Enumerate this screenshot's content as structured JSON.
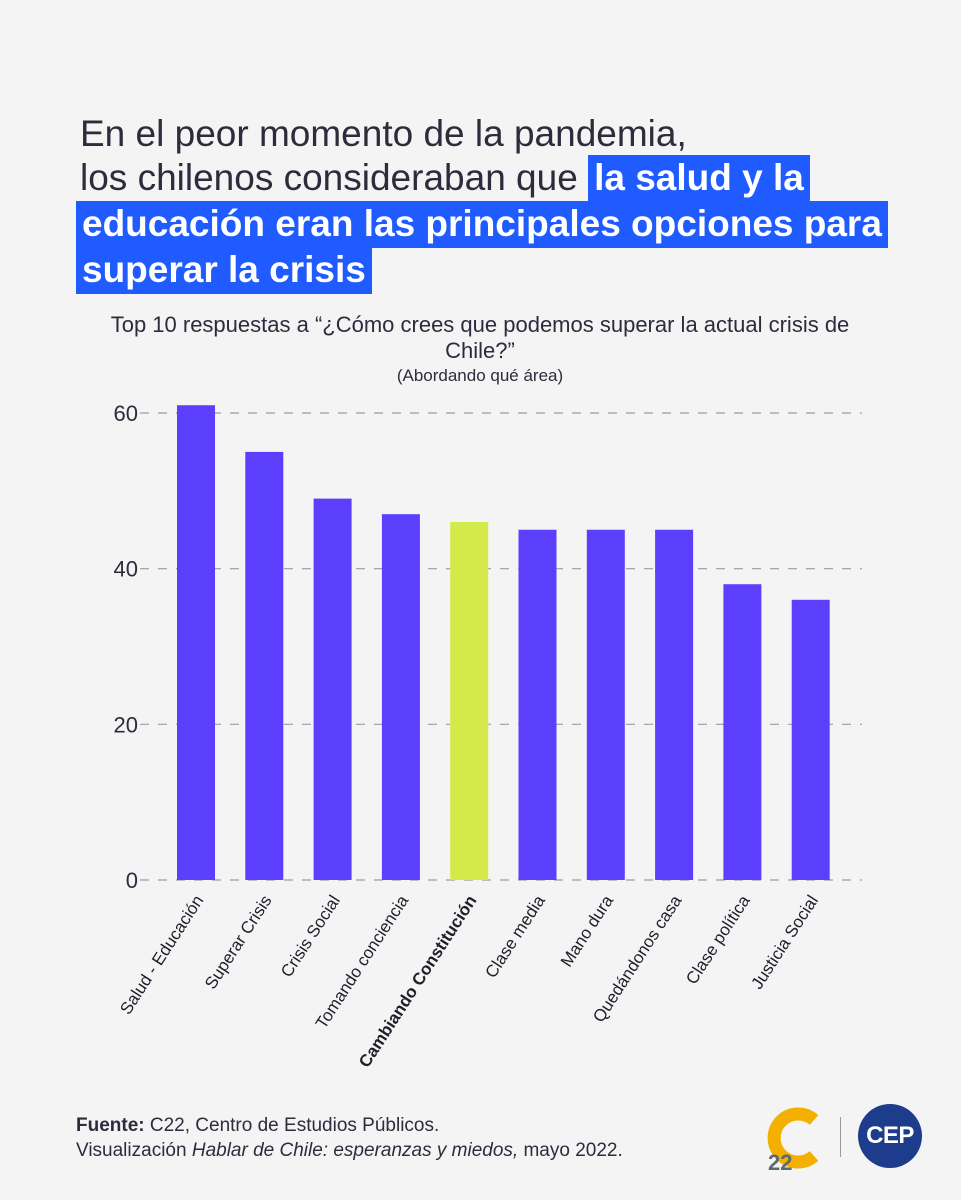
{
  "headline": {
    "line1": "En el peor momento de la pandemia,",
    "line2": "los chilenos consideraban que",
    "highlight": "la salud y la educación eran las principales opciones para superar la crisis"
  },
  "chart_data": {
    "type": "bar",
    "title": "Top 10 respuestas a “¿Cómo crees que podemos superar la actual crisis de Chile?”",
    "subtitle": "(Abordando qué área)",
    "categories": [
      "Salud - Educación",
      "Superar Crisis",
      "Crisis Social",
      "Tomando conciencia",
      "Cambiando Constitución",
      "Clase media",
      "Mano dura",
      "Quedándonos casa",
      "Clase política",
      "Justicia Social"
    ],
    "values": [
      61,
      55,
      49,
      47,
      46,
      45,
      45,
      45,
      38,
      36
    ],
    "highlighted_category": "Cambiando Constitución",
    "yticks": [
      0,
      20,
      40,
      60
    ],
    "ylim": [
      0,
      60
    ],
    "grid": "horizontal dashed",
    "colors": {
      "bar": "#5b3ffd",
      "highlight": "#d4e94a",
      "grid": "#9b9ba5"
    }
  },
  "footer": {
    "source_label": "Fuente:",
    "source_text": "C22, Centro de Estudios Públicos.",
    "viz_prefix": "Visualización",
    "viz_title": "Hablar de Chile: esperanzas y miedos,",
    "viz_date": "mayo 2022."
  },
  "logos": {
    "c22": "22",
    "cep": "CEP",
    "c22_colors": [
      "#f4b000",
      "#5a6a6e"
    ],
    "cep_color": "#1d3c8c"
  }
}
